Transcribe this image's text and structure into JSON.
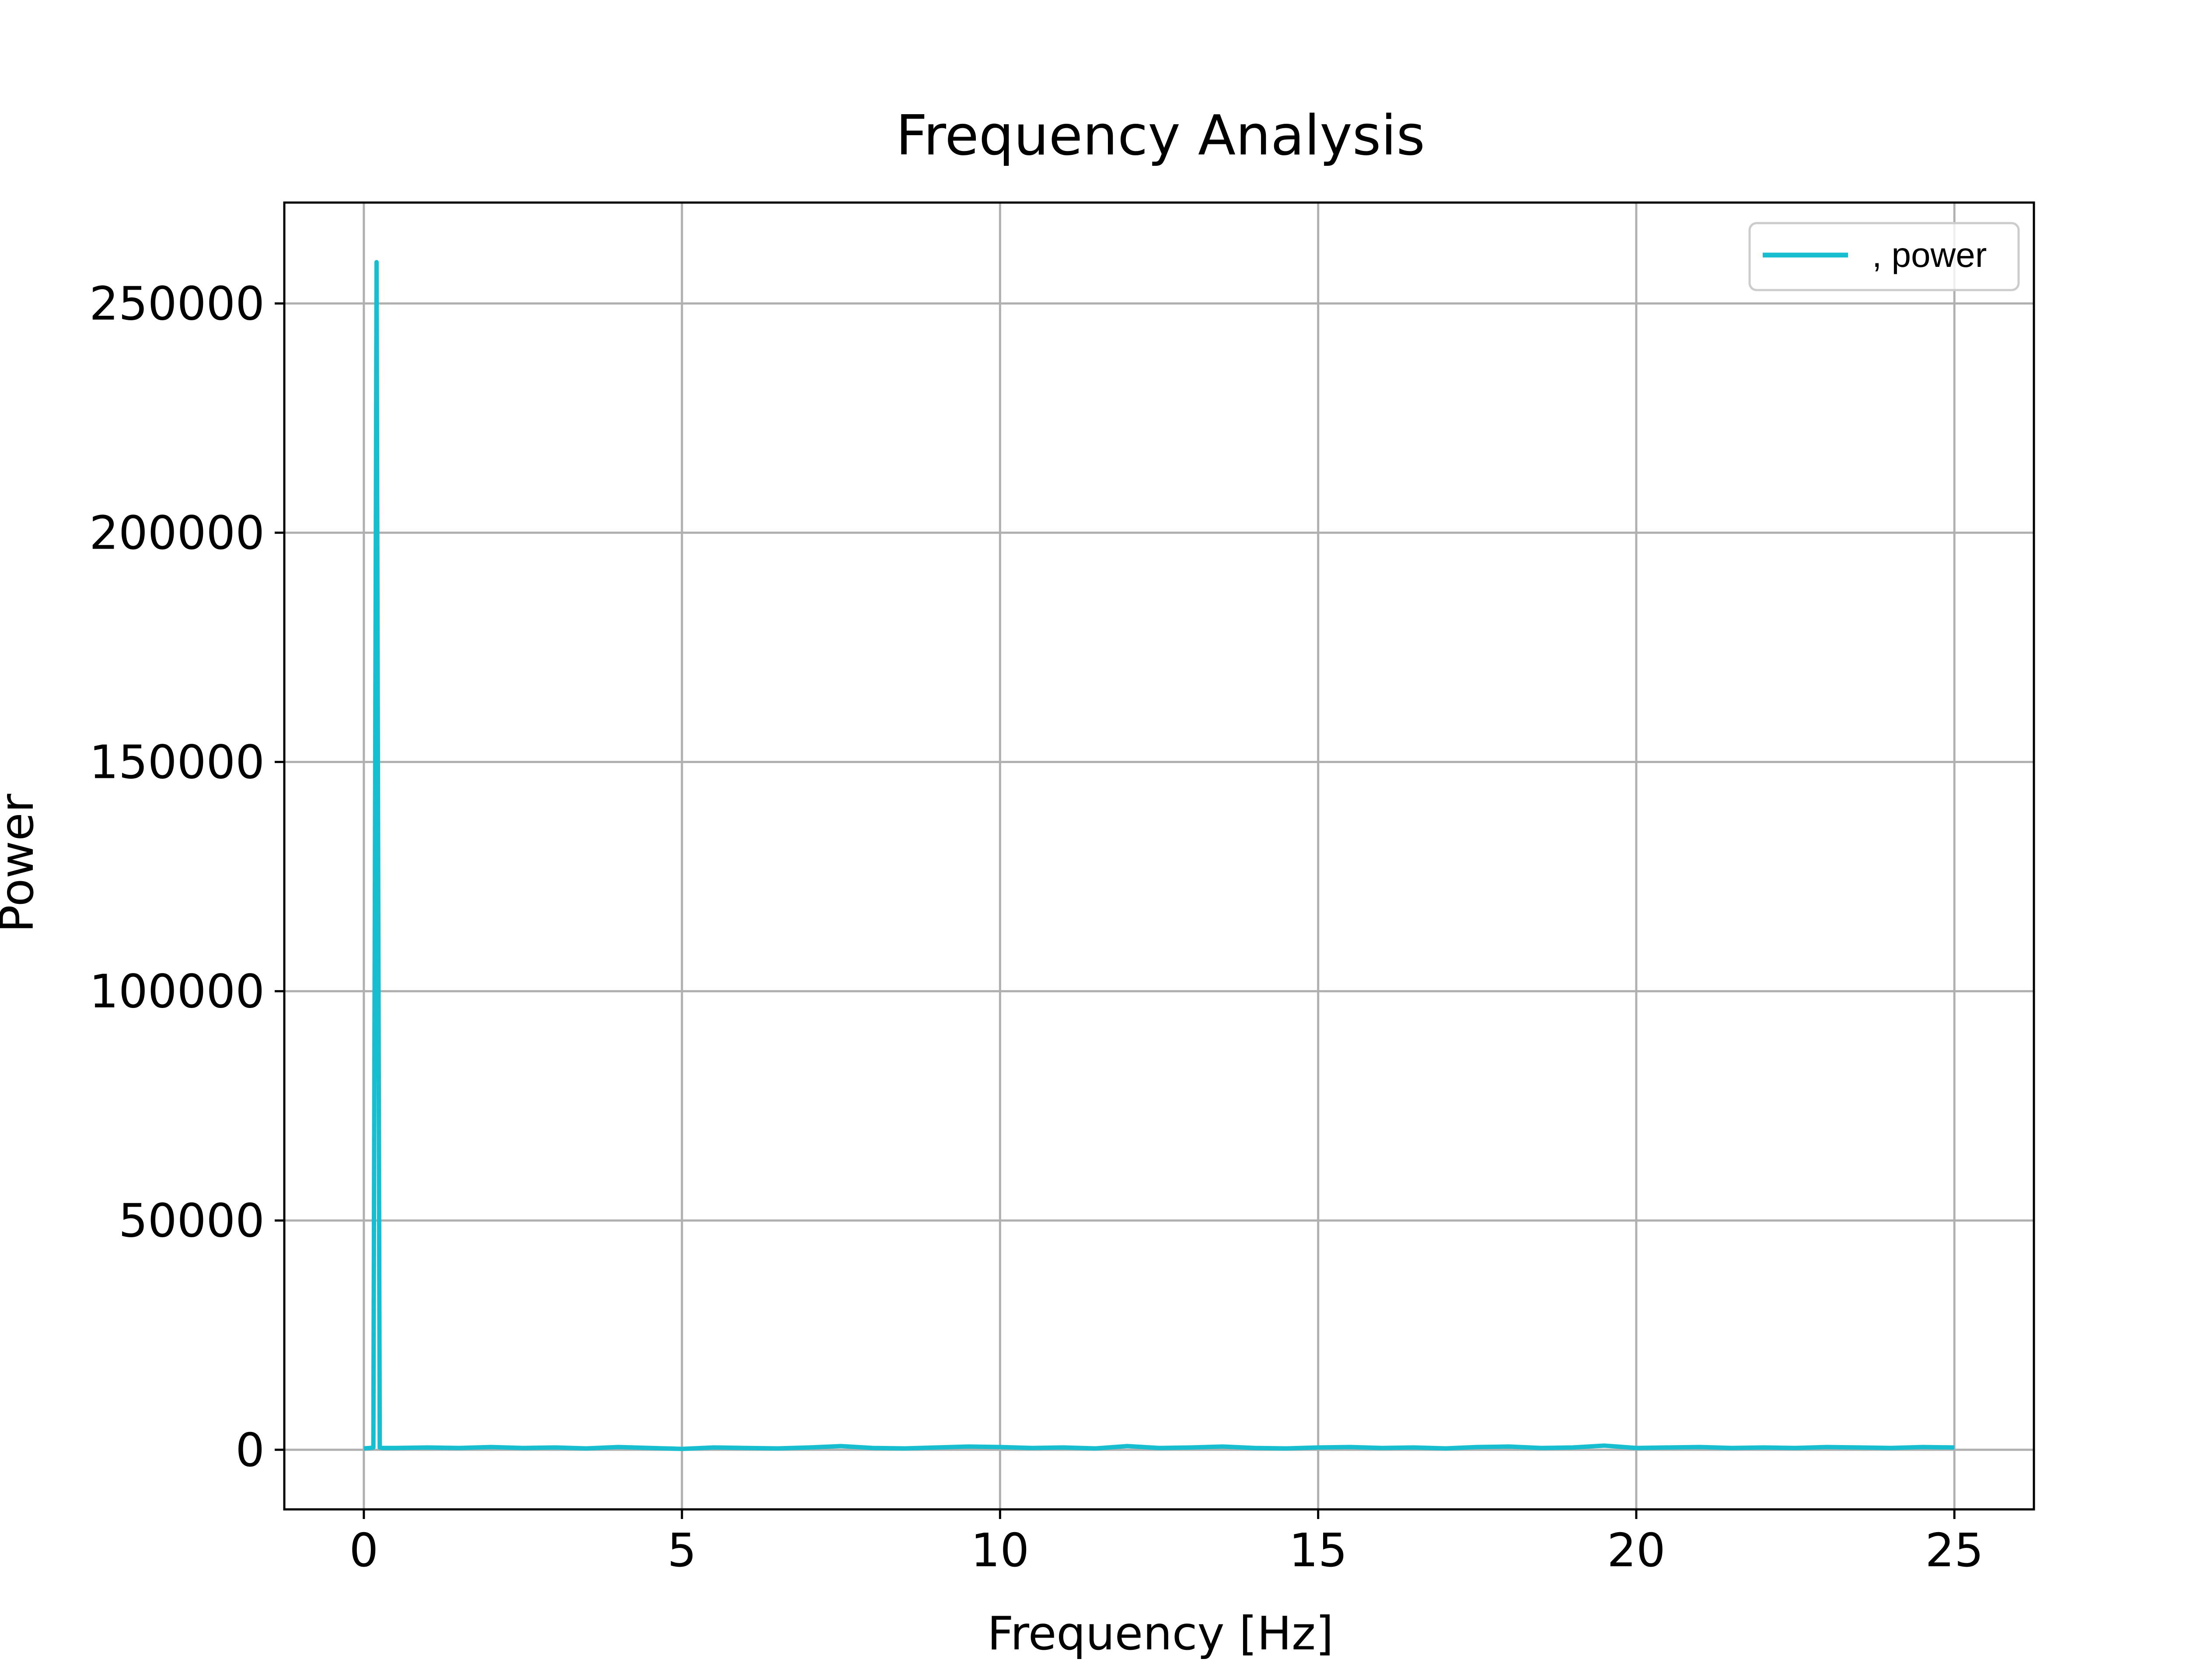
{
  "chart_data": {
    "type": "line",
    "title": "Frequency Analysis",
    "xlabel": "Frequency [Hz]",
    "ylabel": "Power",
    "xlim": [
      -1.25,
      26.25
    ],
    "ylim": [
      -13000,
      272000
    ],
    "xticks": [
      0,
      5,
      10,
      15,
      20,
      25
    ],
    "xtick_labels": [
      "0",
      "5",
      "10",
      "15",
      "20",
      "25"
    ],
    "yticks": [
      0,
      50000,
      100000,
      150000,
      200000,
      250000
    ],
    "ytick_labels": [
      "0",
      "50000",
      "100000",
      "150000",
      "200000",
      "250000"
    ],
    "grid": true,
    "legend_position": "top-right",
    "series": [
      {
        "name": ", power",
        "color": "#17becf",
        "x": [
          0,
          0.1,
          0.15,
          0.2,
          0.25,
          0.3,
          0.5,
          1,
          1.5,
          2,
          2.5,
          3,
          3.5,
          4,
          4.5,
          5,
          5.5,
          6,
          6.5,
          7,
          7.5,
          8,
          8.5,
          9,
          9.5,
          10,
          10.5,
          11,
          11.5,
          12,
          12.5,
          13,
          13.5,
          14,
          14.5,
          15,
          15.5,
          16,
          16.5,
          17,
          17.5,
          18,
          18.5,
          19,
          19.5,
          20,
          20.5,
          21,
          21.5,
          22,
          22.5,
          23,
          23.5,
          24,
          24.5,
          25
        ],
        "y": [
          300,
          400,
          500,
          259000,
          500,
          400,
          400,
          500,
          400,
          600,
          400,
          500,
          300,
          600,
          400,
          200,
          500,
          400,
          300,
          500,
          800,
          400,
          300,
          500,
          700,
          600,
          400,
          500,
          300,
          800,
          400,
          500,
          700,
          400,
          300,
          500,
          600,
          400,
          500,
          300,
          600,
          700,
          400,
          500,
          900,
          400,
          500,
          600,
          400,
          500,
          400,
          600,
          500,
          400,
          600,
          500
        ]
      }
    ]
  }
}
